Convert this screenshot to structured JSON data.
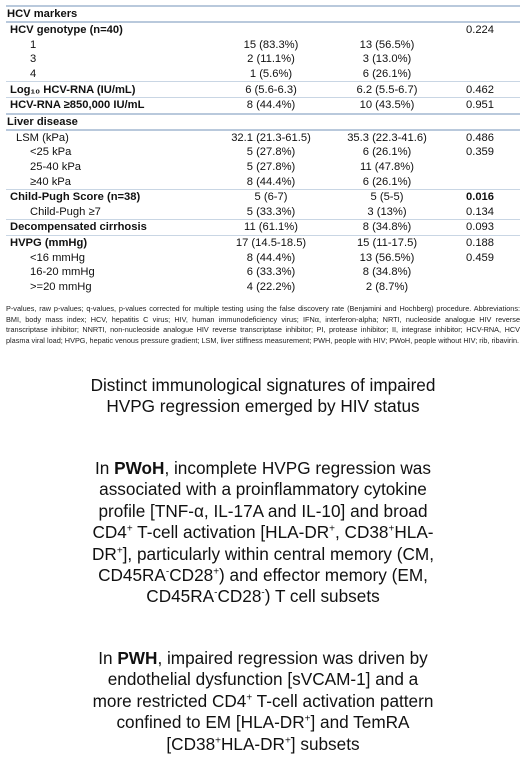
{
  "table": {
    "rows": [
      {
        "label": "HCV markers",
        "section": true
      },
      {
        "label": "HCV genotype (n=40)",
        "bold": true,
        "p": "0.224"
      },
      {
        "label": "1",
        "indent": 2,
        "g1": "15 (83.3%)",
        "g2": "13 (56.5%)"
      },
      {
        "label": "3",
        "indent": 2,
        "g1": "2 (11.1%)",
        "g2": "3 (13.0%)"
      },
      {
        "label": "4",
        "indent": 2,
        "g1": "1 (5.6%)",
        "g2": "6 (26.1%)"
      },
      {
        "label": "Log₁₀ HCV-RNA (IU/mL)",
        "bold": true,
        "g1": "6 (5.6-6.3)",
        "g2": "6.2 (5.5-6.7)",
        "p": "0.462"
      },
      {
        "label": "HCV-RNA ≥850,000 IU/mL",
        "bold": true,
        "g1": "8 (44.4%)",
        "g2": "10 (43.5%)",
        "p": "0.951"
      },
      {
        "label": "Liver disease",
        "section": true
      },
      {
        "label": "LSM (kPa)",
        "indent": 1,
        "g1": "32.1 (21.3-61.5)",
        "g2": "35.3 (22.3-41.6)",
        "p": "0.486"
      },
      {
        "label": "<25 kPa",
        "indent": 2,
        "g1": "5 (27.8%)",
        "g2": "6 (26.1%)",
        "p": "0.359"
      },
      {
        "label": "25-40 kPa",
        "indent": 2,
        "g1": "5 (27.8%)",
        "g2": "11 (47.8%)"
      },
      {
        "label": "≥40 kPa",
        "indent": 2,
        "g1": "8 (44.4%)",
        "g2": "6 (26.1%)"
      },
      {
        "label": "Child-Pugh Score (n=38)",
        "bold": true,
        "g1": "5 (6-7)",
        "g2": "5 (5-5)",
        "p": "0.016",
        "p_bold": true
      },
      {
        "label": "Child-Pugh ≥7",
        "indent": 2,
        "g1": "5 (33.3%)",
        "g2": "3 (13%)",
        "p": "0.134"
      },
      {
        "label": "Decompensated cirrhosis",
        "bold": true,
        "g1": "11 (61.1%)",
        "g2": "8 (34.8%)",
        "p": "0.093"
      },
      {
        "label": "HVPG (mmHg)",
        "bold": true,
        "g1": "17 (14.5-18.5)",
        "g2": "15 (11-17.5)",
        "p": "0.188"
      },
      {
        "label": "<16 mmHg",
        "indent": 2,
        "g1": "8 (44.4%)",
        "g2": "13 (56.5%)",
        "p": "0.459"
      },
      {
        "label": "16-20 mmHg",
        "indent": 2,
        "g1": "6 (33.3%)",
        "g2": "8 (34.8%)"
      },
      {
        "label": ">=20 mmHg",
        "indent": 2,
        "g1": "4 (22.2%)",
        "g2": "2 (8.7%)"
      }
    ],
    "footnote": "P-values, raw p-values; q-values, p-values corrected for multiple testing using the false discovery rate (Benjamini and Hochberg) procedure. Abbreviations: BMI, body mass index; HCV, hepatitis C virus; HIV, human immunodeficiency virus; IFNα, interferon-alpha; NRTI, nucleoside analogue HIV reverse transcriptase inhibitor; NNRTI, non-nucleoside analogue HIV reverse transcriptase inhibitor; PI, protease inhibitor; II, integrase inhibitor; HCV-RNA, HCV plasma viral load; HVPG, hepatic venous pressure gradient; LSM, liver stiffness measurement; PWH, people with HIV; PWoH, people without HIV; rib, ribavirin."
  },
  "paragraphs": [
    [
      "Distinct immunological signatures of impaired HVPG regression emerged by HIV status"
    ],
    [
      "In ",
      "PWoH",
      ", incomplete HVPG regression was associated with a proinflammatory cytokine profile [TNF-α, IL-17A and IL-10] and broad CD4",
      "+",
      " T-cell activation [HLA-DR",
      "+",
      ", CD38",
      "+",
      "HLA-DR",
      "+",
      "], particularly within central memory (CM, CD45RA",
      "-",
      "CD28",
      "+",
      ") and effector memory (EM, CD45RA",
      "-",
      "CD28",
      "-",
      ") T cell subsets"
    ],
    [
      "In ",
      "PWH",
      ", impaired regression was driven by endothelial dysfunction [sVCAM-1] and a more restricted CD4",
      "+",
      " T-cell activation pattern confined to EM [HLA-DR",
      "+",
      "] and TemRA [CD38",
      "+",
      "HLA-DR",
      "+",
      "] subsets"
    ]
  ]
}
